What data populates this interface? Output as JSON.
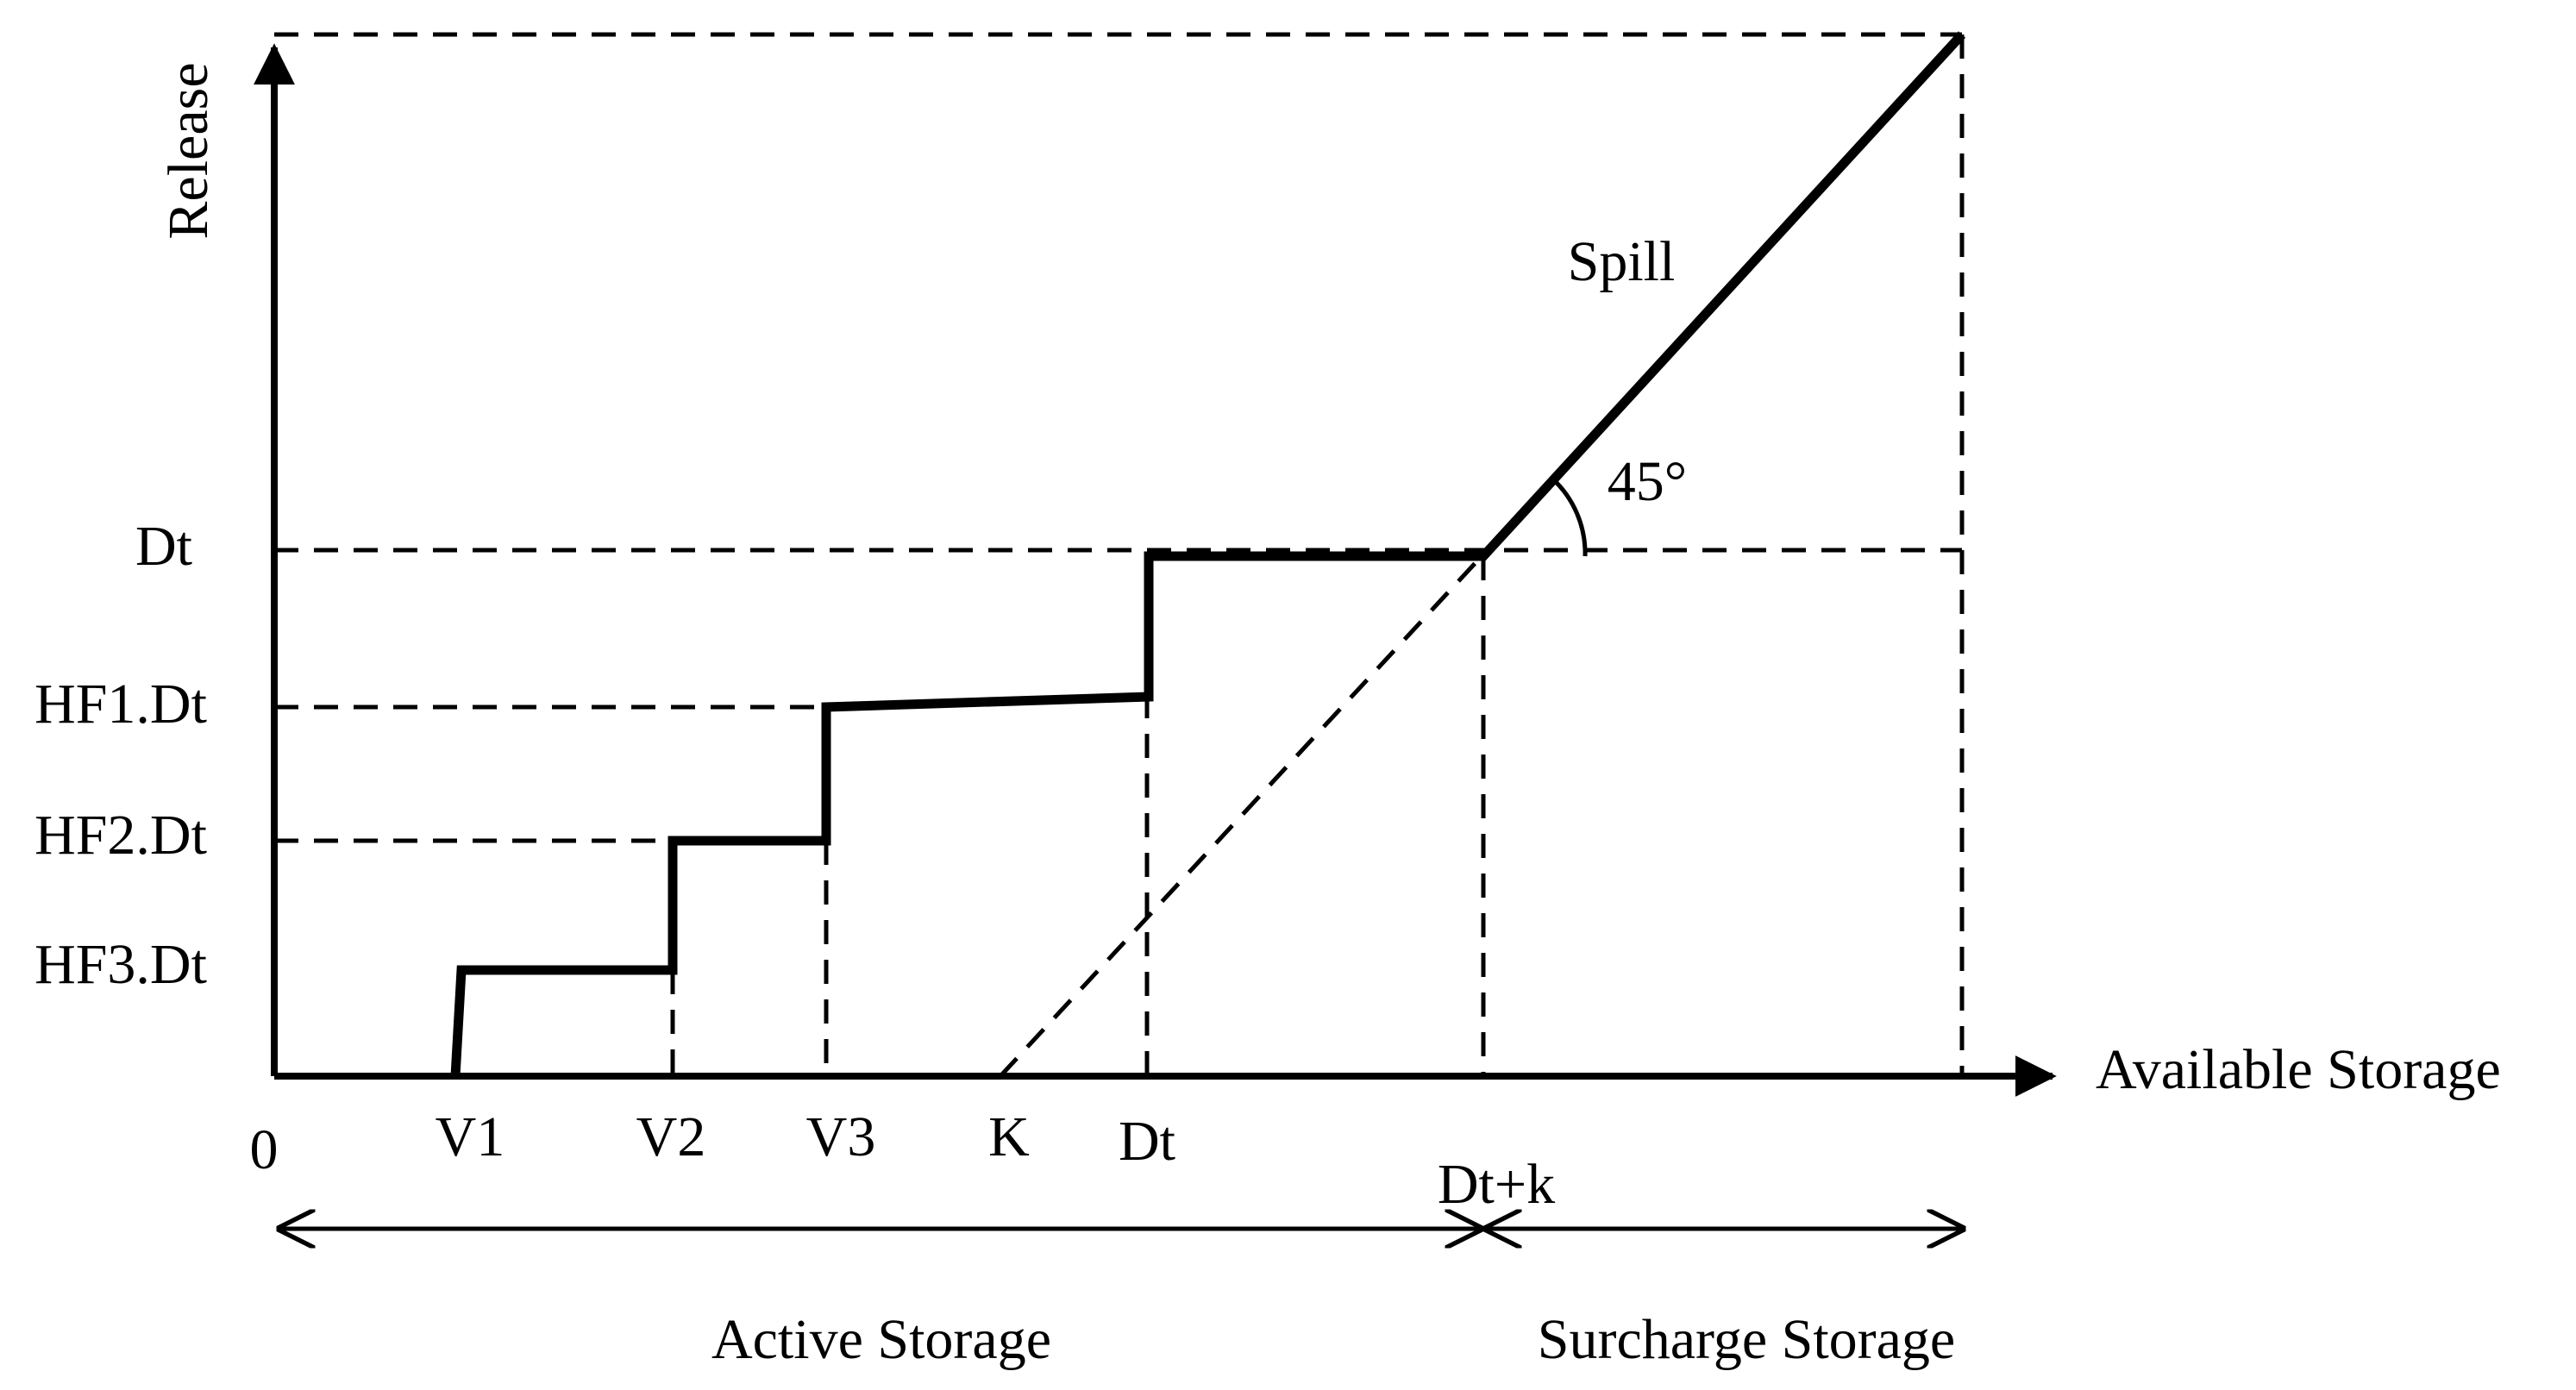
{
  "axes": {
    "y_label": "Release",
    "x_label": "Available Storage",
    "origin": "0"
  },
  "y_ticks": {
    "dt": "Dt",
    "hf1": "HF1.Dt",
    "hf2": "HF2.Dt",
    "hf3": "HF3.Dt"
  },
  "x_ticks": {
    "v1": "V1",
    "v2": "V2",
    "v3": "V3",
    "k": "K",
    "dt": "Dt",
    "dtk": "Dt+k"
  },
  "annotations": {
    "spill": "Spill",
    "angle": "45°"
  },
  "ranges": {
    "active": "Active Storage",
    "surcharge": "Surcharge Storage"
  }
}
